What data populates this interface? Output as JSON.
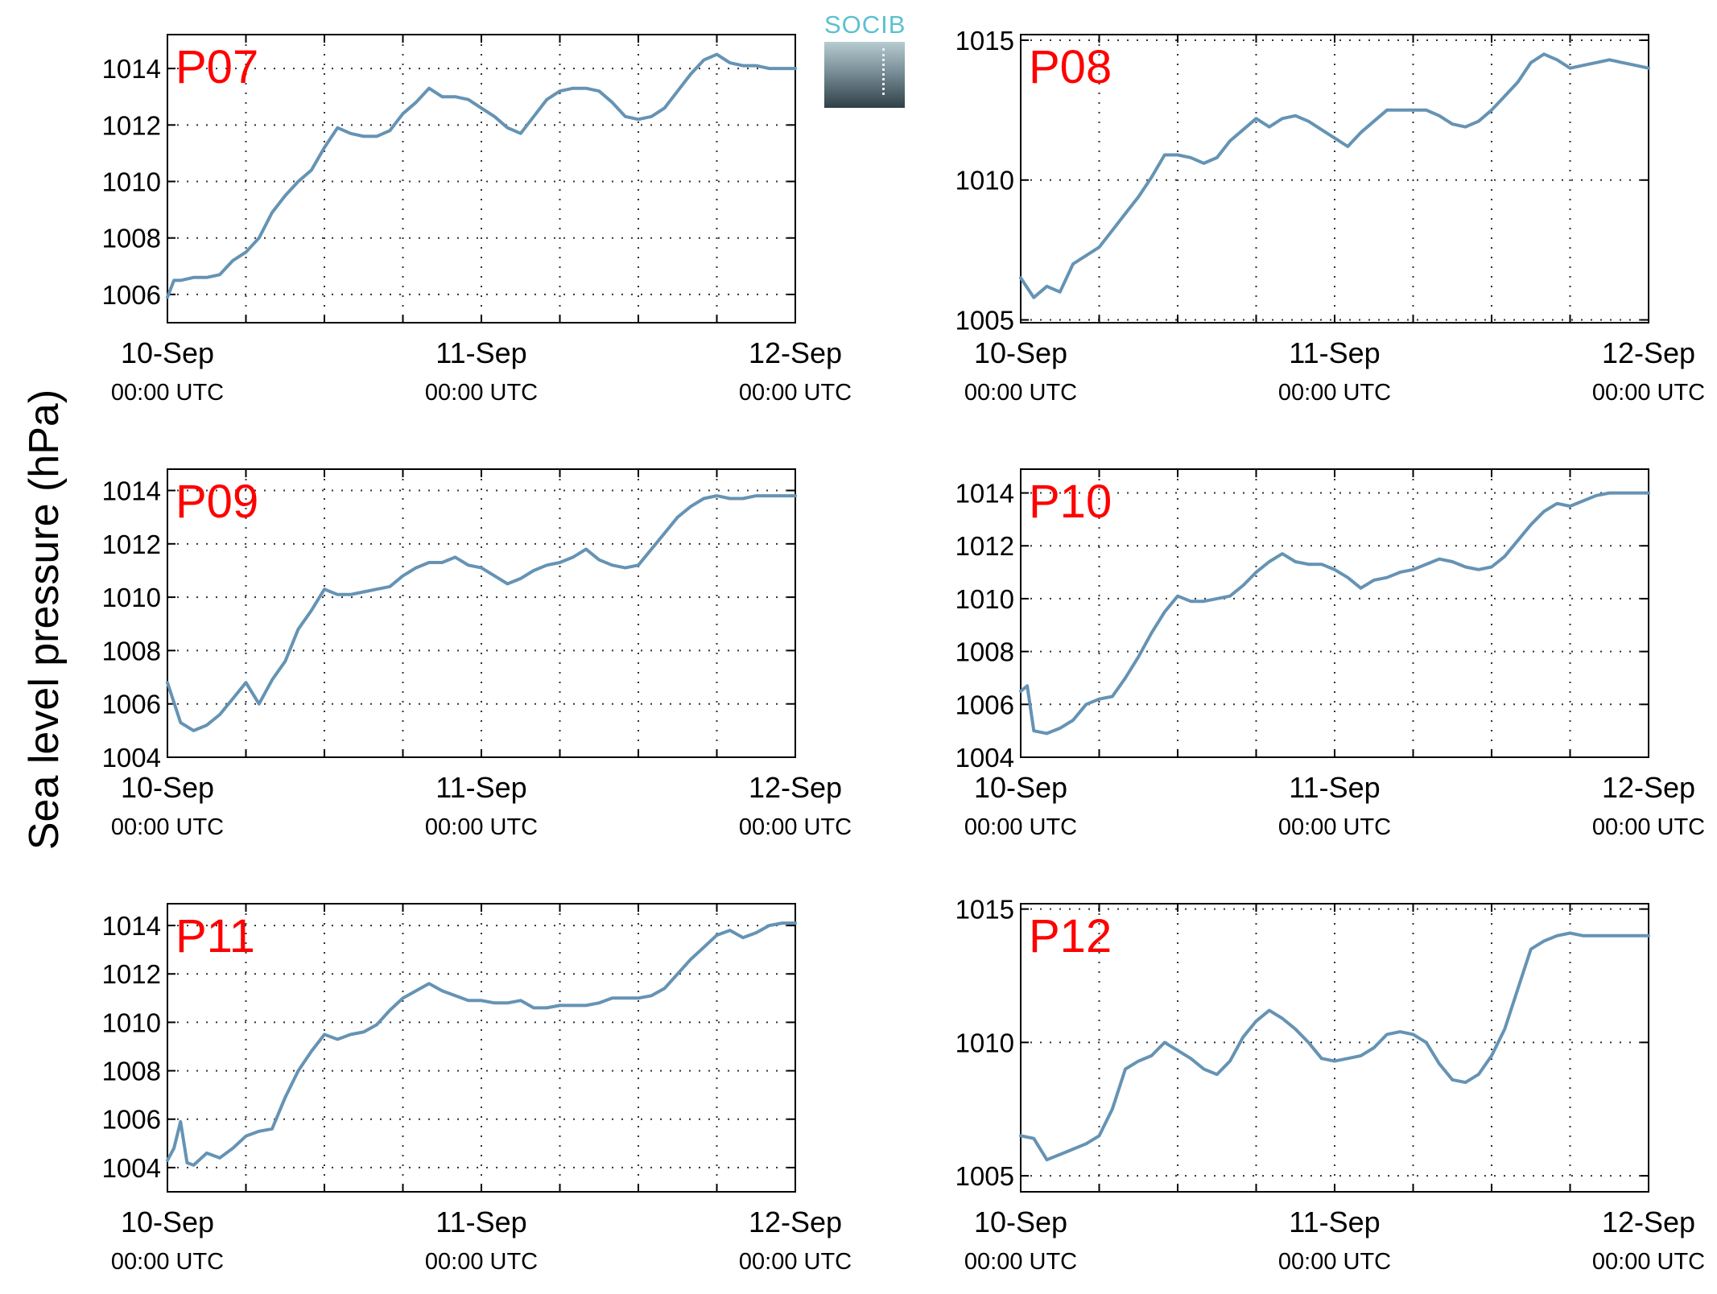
{
  "figure": {
    "ylabel": "Sea level pressure (hPa)",
    "logo_text": "SOCIB"
  },
  "chart_data": [
    {
      "type": "line",
      "title": "P07",
      "x_ticks": [
        [
          "10-Sep",
          "00:00 UTC"
        ],
        [
          "11-Sep",
          "00:00 UTC"
        ],
        [
          "12-Sep",
          "00:00 UTC"
        ]
      ],
      "x_range_hours": [
        0,
        48
      ],
      "ylim": [
        1005,
        1015.2
      ],
      "y_ticks": [
        1006,
        1008,
        1010,
        1012,
        1014
      ],
      "grid": true,
      "color": "#6593b4",
      "series": [
        {
          "x": [
            0,
            0.5,
            1,
            2,
            3,
            4,
            5,
            6,
            7,
            8,
            9,
            10,
            11,
            12,
            13,
            14,
            15,
            16,
            17,
            18,
            19,
            20,
            21,
            22,
            23,
            24,
            25,
            26,
            27,
            28,
            29,
            30,
            31,
            32,
            33,
            34,
            35,
            36,
            37,
            38,
            39,
            40,
            41,
            42,
            43,
            44,
            45,
            46,
            46.5,
            47,
            48
          ],
          "y": [
            1005.9,
            1006.5,
            1006.5,
            1006.6,
            1006.6,
            1006.7,
            1007.2,
            1007.5,
            1008.0,
            1008.9,
            1009.5,
            1010.0,
            1010.4,
            1011.2,
            1011.9,
            1011.7,
            1011.6,
            1011.6,
            1011.8,
            1012.4,
            1012.8,
            1013.3,
            1013.0,
            1013.0,
            1012.9,
            1012.6,
            1012.3,
            1011.9,
            1011.7,
            1012.3,
            1012.9,
            1013.2,
            1013.3,
            1013.3,
            1013.2,
            1012.8,
            1012.3,
            1012.2,
            1012.3,
            1012.6,
            1013.2,
            1013.8,
            1014.3,
            1014.5,
            1014.2,
            1014.1,
            1014.1,
            1014.0,
            1014.0,
            1014.0,
            1014.0
          ]
        }
      ]
    },
    {
      "type": "line",
      "title": "P08",
      "x_ticks": [
        [
          "10-Sep",
          "00:00 UTC"
        ],
        [
          "11-Sep",
          "00:00 UTC"
        ],
        [
          "12-Sep",
          "00:00 UTC"
        ]
      ],
      "x_range_hours": [
        0,
        48
      ],
      "ylim": [
        1004.9,
        1015.2
      ],
      "y_ticks": [
        1005,
        1010,
        1015
      ],
      "grid": true,
      "color": "#6593b4",
      "series": [
        {
          "x": [
            0,
            1,
            2,
            3,
            4,
            5,
            6,
            7,
            8,
            9,
            10,
            11,
            12,
            13,
            14,
            15,
            16,
            17,
            18,
            19,
            20,
            21,
            22,
            23,
            24,
            25,
            26,
            27,
            28,
            29,
            30,
            31,
            32,
            33,
            34,
            35,
            36,
            37,
            38,
            39,
            40,
            41,
            42,
            43,
            44,
            45,
            46,
            47,
            48
          ],
          "y": [
            1006.5,
            1005.8,
            1006.2,
            1006.0,
            1007.0,
            1007.3,
            1007.6,
            1008.2,
            1008.8,
            1009.4,
            1010.1,
            1010.9,
            1010.9,
            1010.8,
            1010.6,
            1010.8,
            1011.4,
            1011.8,
            1012.2,
            1011.9,
            1012.2,
            1012.3,
            1012.1,
            1011.8,
            1011.5,
            1011.2,
            1011.7,
            1012.1,
            1012.5,
            1012.5,
            1012.5,
            1012.5,
            1012.3,
            1012.0,
            1011.9,
            1012.1,
            1012.5,
            1013.0,
            1013.5,
            1014.2,
            1014.5,
            1014.3,
            1014.0,
            1014.1,
            1014.2,
            1014.3,
            1014.2,
            1014.1,
            1014.0
          ]
        }
      ]
    },
    {
      "type": "line",
      "title": "P09",
      "x_ticks": [
        [
          "10-Sep",
          "00:00 UTC"
        ],
        [
          "11-Sep",
          "00:00 UTC"
        ],
        [
          "12-Sep",
          "00:00 UTC"
        ]
      ],
      "x_range_hours": [
        0,
        48
      ],
      "ylim": [
        1004,
        1014.8
      ],
      "y_ticks": [
        1004,
        1006,
        1008,
        1010,
        1012,
        1014
      ],
      "grid": true,
      "color": "#6593b4",
      "series": [
        {
          "x": [
            0,
            1,
            2,
            3,
            4,
            5,
            6,
            7,
            8,
            9,
            10,
            11,
            12,
            13,
            14,
            15,
            16,
            17,
            18,
            19,
            20,
            21,
            22,
            23,
            24,
            25,
            26,
            27,
            28,
            29,
            30,
            31,
            32,
            33,
            34,
            35,
            36,
            37,
            38,
            39,
            40,
            41,
            42,
            43,
            44,
            45,
            46,
            47,
            48
          ],
          "y": [
            1006.8,
            1005.3,
            1005.0,
            1005.2,
            1005.6,
            1006.2,
            1006.8,
            1006.0,
            1006.9,
            1007.6,
            1008.8,
            1009.5,
            1010.3,
            1010.1,
            1010.1,
            1010.2,
            1010.3,
            1010.4,
            1010.8,
            1011.1,
            1011.3,
            1011.3,
            1011.5,
            1011.2,
            1011.1,
            1010.8,
            1010.5,
            1010.7,
            1011.0,
            1011.2,
            1011.3,
            1011.5,
            1011.8,
            1011.4,
            1011.2,
            1011.1,
            1011.2,
            1011.8,
            1012.4,
            1013.0,
            1013.4,
            1013.7,
            1013.8,
            1013.7,
            1013.7,
            1013.8,
            1013.8,
            1013.8,
            1013.8
          ]
        }
      ]
    },
    {
      "type": "line",
      "title": "P10",
      "x_ticks": [
        [
          "10-Sep",
          "00:00 UTC"
        ],
        [
          "11-Sep",
          "00:00 UTC"
        ],
        [
          "12-Sep",
          "00:00 UTC"
        ]
      ],
      "x_range_hours": [
        0,
        48
      ],
      "ylim": [
        1004,
        1014.9
      ],
      "y_ticks": [
        1004,
        1006,
        1008,
        1010,
        1012,
        1014
      ],
      "grid": true,
      "color": "#6593b4",
      "series": [
        {
          "x": [
            0,
            0.5,
            1,
            2,
            3,
            4,
            5,
            6,
            7,
            8,
            9,
            10,
            11,
            12,
            13,
            14,
            15,
            16,
            17,
            18,
            19,
            20,
            21,
            22,
            23,
            24,
            25,
            26,
            27,
            28,
            29,
            30,
            31,
            32,
            33,
            34,
            35,
            36,
            37,
            38,
            39,
            40,
            41,
            42,
            43,
            44,
            45,
            46,
            47,
            48
          ],
          "y": [
            1006.5,
            1006.7,
            1005.0,
            1004.9,
            1005.1,
            1005.4,
            1006.0,
            1006.2,
            1006.3,
            1007.0,
            1007.8,
            1008.7,
            1009.5,
            1010.1,
            1009.9,
            1009.9,
            1010.0,
            1010.1,
            1010.5,
            1011.0,
            1011.4,
            1011.7,
            1011.4,
            1011.3,
            1011.3,
            1011.1,
            1010.8,
            1010.4,
            1010.7,
            1010.8,
            1011.0,
            1011.1,
            1011.3,
            1011.5,
            1011.4,
            1011.2,
            1011.1,
            1011.2,
            1011.6,
            1012.2,
            1012.8,
            1013.3,
            1013.6,
            1013.5,
            1013.7,
            1013.9,
            1014.0,
            1014.0,
            1014.0,
            1014.0
          ]
        }
      ]
    },
    {
      "type": "line",
      "title": "P11",
      "x_ticks": [
        [
          "10-Sep",
          "00:00 UTC"
        ],
        [
          "11-Sep",
          "00:00 UTC"
        ],
        [
          "12-Sep",
          "00:00 UTC"
        ]
      ],
      "x_range_hours": [
        0,
        48
      ],
      "ylim": [
        1003,
        1014.9
      ],
      "y_ticks": [
        1004,
        1006,
        1008,
        1010,
        1012,
        1014
      ],
      "grid": true,
      "color": "#6593b4",
      "series": [
        {
          "x": [
            0,
            0.5,
            1,
            1.5,
            2,
            3,
            4,
            5,
            6,
            7,
            8,
            9,
            10,
            11,
            12,
            13,
            14,
            15,
            16,
            17,
            18,
            19,
            20,
            21,
            22,
            23,
            24,
            25,
            26,
            27,
            28,
            29,
            30,
            31,
            32,
            33,
            34,
            35,
            36,
            37,
            38,
            39,
            40,
            41,
            42,
            43,
            44,
            45,
            46,
            47,
            48
          ],
          "y": [
            1004.3,
            1004.8,
            1005.9,
            1004.2,
            1004.1,
            1004.6,
            1004.4,
            1004.8,
            1005.3,
            1005.5,
            1005.6,
            1006.9,
            1008.0,
            1008.8,
            1009.5,
            1009.3,
            1009.5,
            1009.6,
            1009.9,
            1010.5,
            1011.0,
            1011.3,
            1011.6,
            1011.3,
            1011.1,
            1010.9,
            1010.9,
            1010.8,
            1010.8,
            1010.9,
            1010.6,
            1010.6,
            1010.7,
            1010.7,
            1010.7,
            1010.8,
            1011.0,
            1011.0,
            1011.0,
            1011.1,
            1011.4,
            1012.0,
            1012.6,
            1013.1,
            1013.6,
            1013.8,
            1013.5,
            1013.7,
            1014.0,
            1014.1,
            1014.1
          ]
        }
      ]
    },
    {
      "type": "line",
      "title": "P12",
      "x_ticks": [
        [
          "10-Sep",
          "00:00 UTC"
        ],
        [
          "11-Sep",
          "00:00 UTC"
        ],
        [
          "12-Sep",
          "00:00 UTC"
        ]
      ],
      "x_range_hours": [
        0,
        48
      ],
      "ylim": [
        1004.4,
        1015.2
      ],
      "y_ticks": [
        1005,
        1010,
        1015
      ],
      "grid": true,
      "color": "#6593b4",
      "series": [
        {
          "x": [
            0,
            1,
            2,
            3,
            4,
            5,
            6,
            7,
            8,
            9,
            10,
            11,
            12,
            13,
            14,
            15,
            16,
            17,
            18,
            19,
            20,
            21,
            22,
            23,
            24,
            25,
            26,
            27,
            28,
            29,
            30,
            31,
            32,
            33,
            34,
            35,
            36,
            37,
            38,
            39,
            40,
            41,
            42,
            43,
            44,
            45,
            46,
            47,
            48
          ],
          "y": [
            1006.5,
            1006.4,
            1005.6,
            1005.8,
            1006.0,
            1006.2,
            1006.5,
            1007.5,
            1009.0,
            1009.3,
            1009.5,
            1010.0,
            1009.7,
            1009.4,
            1009.0,
            1008.8,
            1009.3,
            1010.2,
            1010.8,
            1011.2,
            1010.9,
            1010.5,
            1010.0,
            1009.4,
            1009.3,
            1009.4,
            1009.5,
            1009.8,
            1010.3,
            1010.4,
            1010.3,
            1010.0,
            1009.2,
            1008.6,
            1008.5,
            1008.8,
            1009.5,
            1010.5,
            1012.0,
            1013.5,
            1013.8,
            1014.0,
            1014.1,
            1014.0,
            1014.0,
            1014.0,
            1014.0,
            1014.0,
            1014.0
          ]
        }
      ]
    }
  ]
}
